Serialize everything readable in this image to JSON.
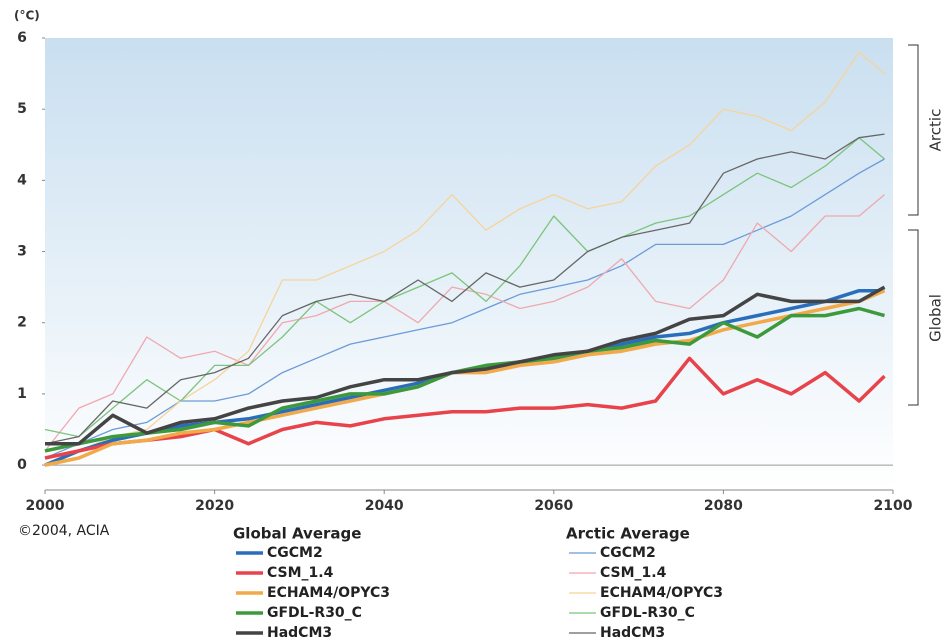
{
  "chart_data": {
    "type": "line",
    "y_label": "(°C)",
    "source": "©2004, ACIA",
    "annotations": [
      "Arctic",
      "Global"
    ],
    "x": [
      2000,
      2004,
      2008,
      2012,
      2016,
      2020,
      2024,
      2028,
      2032,
      2036,
      2040,
      2044,
      2048,
      2052,
      2056,
      2060,
      2064,
      2068,
      2072,
      2076,
      2080,
      2084,
      2088,
      2092,
      2096,
      2099
    ],
    "xlim": [
      2000,
      2100
    ],
    "xticks": [
      2000,
      2020,
      2040,
      2060,
      2080,
      2100
    ],
    "ylim": [
      -0.35,
      6
    ],
    "yticks": [
      0,
      1,
      2,
      3,
      4,
      5,
      6
    ],
    "series_groups": [
      {
        "title": "Global Average",
        "line_width": 3.5,
        "series": [
          {
            "name": "CGCM2",
            "color": "#2a6ebb",
            "values": [
              0.0,
              0.2,
              0.35,
              0.45,
              0.55,
              0.6,
              0.65,
              0.75,
              0.85,
              0.95,
              1.05,
              1.15,
              1.3,
              1.35,
              1.45,
              1.5,
              1.6,
              1.7,
              1.8,
              1.85,
              2.0,
              2.1,
              2.2,
              2.3,
              2.45,
              2.45
            ]
          },
          {
            "name": "CSM_1.4",
            "color": "#e8434a",
            "values": [
              0.1,
              0.2,
              0.3,
              0.35,
              0.4,
              0.5,
              0.3,
              0.5,
              0.6,
              0.55,
              0.65,
              0.7,
              0.75,
              0.75,
              0.8,
              0.8,
              0.85,
              0.8,
              0.9,
              1.5,
              1.0,
              1.2,
              1.0,
              1.3,
              0.9,
              1.25
            ]
          },
          {
            "name": "ECHAM4/OPYC3",
            "color": "#f2a94a",
            "values": [
              0.0,
              0.1,
              0.3,
              0.35,
              0.45,
              0.5,
              0.6,
              0.7,
              0.8,
              0.9,
              1.0,
              1.1,
              1.3,
              1.3,
              1.4,
              1.45,
              1.55,
              1.6,
              1.7,
              1.75,
              1.9,
              2.0,
              2.1,
              2.2,
              2.3,
              2.45
            ]
          },
          {
            "name": "GFDL-R30_C",
            "color": "#3c9a3c",
            "values": [
              0.2,
              0.3,
              0.4,
              0.45,
              0.5,
              0.6,
              0.55,
              0.8,
              0.9,
              1.0,
              1.0,
              1.1,
              1.3,
              1.4,
              1.45,
              1.5,
              1.6,
              1.65,
              1.75,
              1.7,
              2.0,
              1.8,
              2.1,
              2.1,
              2.2,
              2.1
            ]
          },
          {
            "name": "HadCM3",
            "color": "#444444",
            "values": [
              0.3,
              0.3,
              0.7,
              0.45,
              0.6,
              0.65,
              0.8,
              0.9,
              0.95,
              1.1,
              1.2,
              1.2,
              1.3,
              1.35,
              1.45,
              1.55,
              1.6,
              1.75,
              1.85,
              2.05,
              2.1,
              2.4,
              2.3,
              2.3,
              2.3,
              2.5
            ]
          }
        ]
      },
      {
        "title": "Arctic Average",
        "line_width": 1.3,
        "series": [
          {
            "name": "CGCM2",
            "color": "#6b9bd8",
            "values": [
              0.1,
              0.3,
              0.5,
              0.6,
              0.9,
              0.9,
              1.0,
              1.3,
              1.5,
              1.7,
              1.8,
              1.9,
              2.0,
              2.2,
              2.4,
              2.5,
              2.6,
              2.8,
              3.1,
              3.1,
              3.1,
              3.3,
              3.5,
              3.8,
              4.1,
              4.3
            ]
          },
          {
            "name": "CSM_1.4",
            "color": "#f0a8ae",
            "values": [
              0.2,
              0.8,
              1.0,
              1.8,
              1.5,
              1.6,
              1.4,
              2.0,
              2.1,
              2.3,
              2.3,
              2.0,
              2.5,
              2.4,
              2.2,
              2.3,
              2.5,
              2.9,
              2.3,
              2.2,
              2.6,
              3.4,
              3.0,
              3.5,
              3.5,
              3.8
            ]
          },
          {
            "name": "ECHAM4/OPYC3",
            "color": "#f7d39a",
            "values": [
              0.1,
              0.2,
              0.4,
              0.5,
              0.9,
              1.2,
              1.6,
              2.6,
              2.6,
              2.8,
              3.0,
              3.3,
              3.8,
              3.3,
              3.6,
              3.8,
              3.6,
              3.7,
              4.2,
              4.5,
              5.0,
              4.9,
              4.7,
              5.1,
              5.8,
              5.5
            ]
          },
          {
            "name": "GFDL-R30_C",
            "color": "#7cc47c",
            "values": [
              0.5,
              0.4,
              0.8,
              1.2,
              0.9,
              1.4,
              1.4,
              1.8,
              2.3,
              2.0,
              2.3,
              2.5,
              2.7,
              2.3,
              2.8,
              3.5,
              3.0,
              3.2,
              3.4,
              3.5,
              3.8,
              4.1,
              3.9,
              4.2,
              4.6,
              4.3
            ]
          },
          {
            "name": "HadCM3",
            "color": "#666666",
            "values": [
              0.3,
              0.4,
              0.9,
              0.8,
              1.2,
              1.3,
              1.5,
              2.1,
              2.3,
              2.4,
              2.3,
              2.6,
              2.3,
              2.7,
              2.5,
              2.6,
              3.0,
              3.2,
              3.3,
              3.4,
              4.1,
              4.3,
              4.4,
              4.3,
              4.6,
              4.65
            ]
          }
        ]
      }
    ]
  }
}
